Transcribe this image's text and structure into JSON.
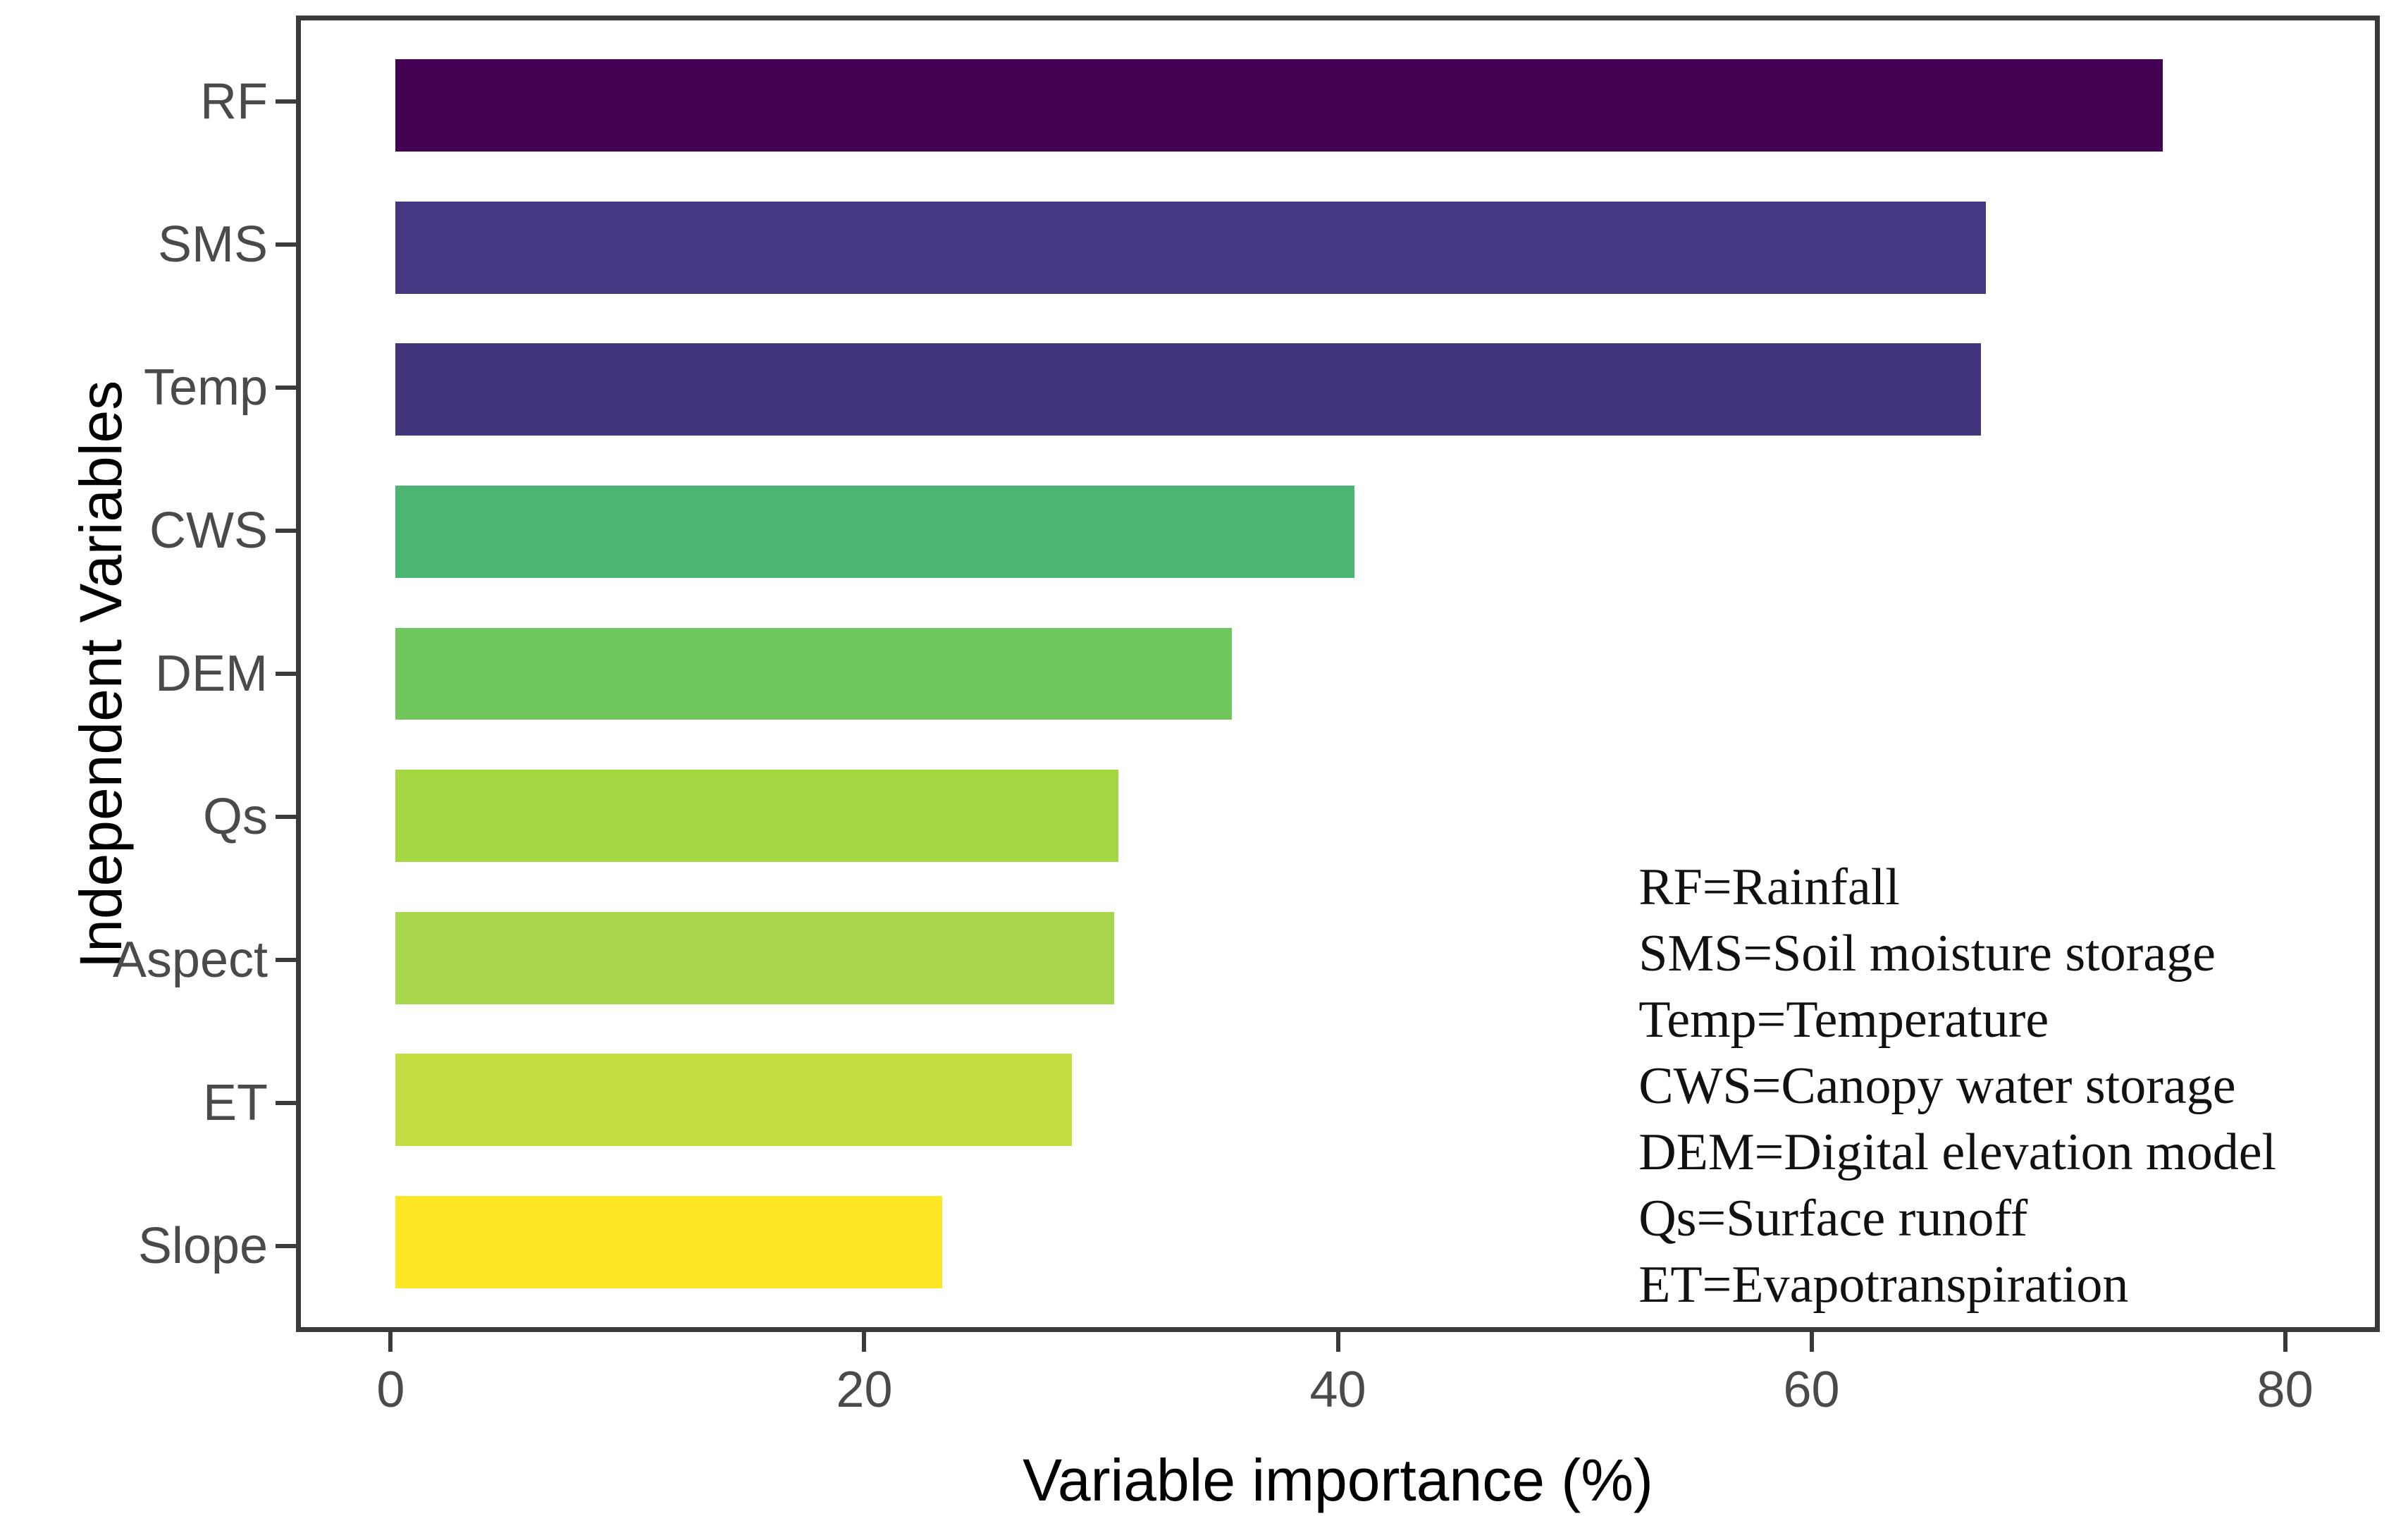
{
  "chart_data": {
    "type": "bar",
    "orientation": "horizontal",
    "title": "",
    "xlabel": "Variable importance (%)",
    "ylabel": "Independent Variables",
    "categories": [
      "RF",
      "SMS",
      "Temp",
      "CWS",
      "DEM",
      "Qs",
      "Aspect",
      "ET",
      "Slope"
    ],
    "values": [
      75,
      67.5,
      67.3,
      40.7,
      35.5,
      30.7,
      30.5,
      28.7,
      23.2
    ],
    "bar_colors": [
      "#440254",
      "#453781",
      "#43357C",
      "#4BB574",
      "#6FC75C",
      "#A5D743",
      "#A8D64C",
      "#C2DD40",
      "#FDE725"
    ],
    "x_ticks": [
      0,
      20,
      40,
      60,
      80
    ],
    "xlim": [
      -4,
      84
    ],
    "grid": false,
    "legend_position": "none",
    "annotation_lines": [
      "RF=Rainfall",
      "SMS=Soil moisture storage",
      "Temp=Temperature",
      "CWS=Canopy water storage",
      "DEM=Digital elevation model",
      "Qs=Surface runoff",
      "ET=Evapotranspiration"
    ]
  },
  "colors": {
    "axis_text": "#4a4a4a",
    "axis_title": "#000000",
    "panel_border": "#3a3a3a",
    "background": "#ffffff"
  }
}
